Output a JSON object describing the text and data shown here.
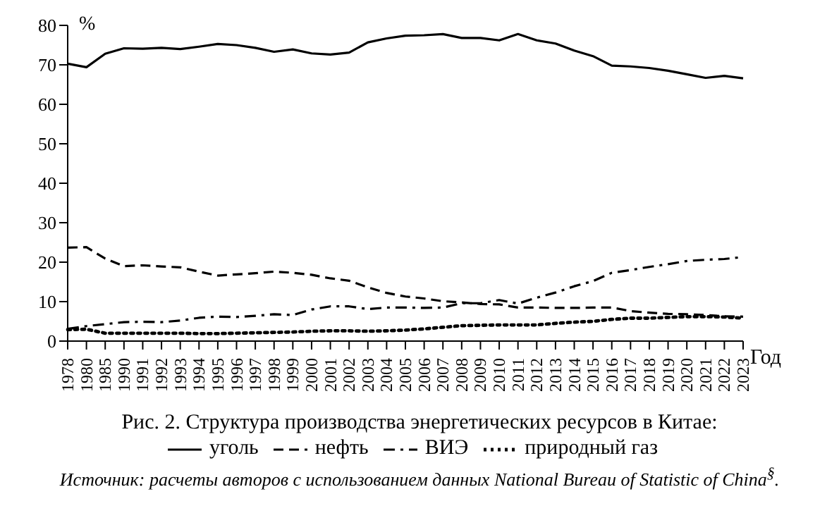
{
  "chart_data": {
    "type": "line",
    "title": "Рис. 2. Структура производства энергетических ресурсов в Китае:",
    "xlabel": "Год",
    "ylabel": "%",
    "annotations": [
      "Источник: расчеты авторов с использованием данных National Bureau of Statistic of China$^{§}$."
    ],
    "categories": [
      "1978",
      "1980",
      "1985",
      "1990",
      "1991",
      "1992",
      "1993",
      "1994",
      "1995",
      "1996",
      "1997",
      "1998",
      "1999",
      "2000",
      "2001",
      "2002",
      "2003",
      "2004",
      "2005",
      "2006",
      "2007",
      "2008",
      "2009",
      "2010",
      "2011",
      "2012",
      "2013",
      "2014",
      "2015",
      "2016",
      "2017",
      "2018",
      "2019",
      "2020",
      "2021",
      "2022",
      "2023"
    ],
    "series": [
      {
        "name": "уголь",
        "color": "#000000",
        "line_style": "solid",
        "values": [
          70.3,
          69.4,
          72.8,
          74.2,
          74.1,
          74.3,
          74.0,
          74.6,
          75.3,
          75.0,
          74.3,
          73.3,
          73.9,
          72.9,
          72.6,
          73.1,
          75.7,
          76.7,
          77.4,
          77.5,
          77.8,
          76.8,
          76.8,
          76.2,
          77.8,
          76.2,
          75.4,
          73.6,
          72.2,
          69.8,
          69.6,
          69.2,
          68.5,
          67.6,
          66.7,
          67.2,
          66.6
        ]
      },
      {
        "name": "нефть",
        "color": "#000000",
        "line_style": "dashed",
        "values": [
          23.7,
          23.8,
          20.9,
          19.0,
          19.2,
          18.9,
          18.7,
          17.6,
          16.6,
          16.9,
          17.2,
          17.6,
          17.3,
          16.8,
          15.9,
          15.3,
          13.6,
          12.2,
          11.3,
          10.8,
          10.1,
          9.8,
          9.4,
          9.3,
          8.5,
          8.5,
          8.4,
          8.4,
          8.5,
          8.5,
          7.6,
          7.2,
          6.9,
          6.8,
          6.6,
          6.3,
          6.2
        ]
      },
      {
        "name": "ВИЭ",
        "color": "#000000",
        "line_style": "dashdot",
        "values": [
          3.1,
          3.8,
          4.3,
          4.8,
          4.9,
          4.8,
          5.2,
          5.9,
          6.2,
          6.1,
          6.4,
          6.8,
          6.6,
          8.0,
          8.8,
          8.8,
          8.1,
          8.5,
          8.5,
          8.4,
          8.5,
          9.6,
          9.6,
          10.4,
          9.5,
          11.0,
          12.3,
          13.9,
          15.2,
          17.3,
          18.0,
          18.8,
          19.5,
          20.3,
          20.6,
          20.8,
          21.3
        ]
      },
      {
        "name": "природный газ",
        "color": "#000000",
        "line_style": "dotted",
        "values": [
          2.9,
          3.0,
          2.0,
          2.0,
          2.0,
          2.0,
          2.0,
          1.9,
          1.9,
          2.0,
          2.1,
          2.2,
          2.3,
          2.5,
          2.6,
          2.6,
          2.5,
          2.6,
          2.8,
          3.1,
          3.5,
          3.9,
          4.0,
          4.1,
          4.1,
          4.1,
          4.5,
          4.8,
          5.0,
          5.5,
          5.8,
          5.8,
          6.0,
          6.2,
          6.2,
          6.1,
          5.8
        ]
      }
    ],
    "ylim": [
      0,
      80
    ],
    "yticks": [
      0,
      10,
      20,
      30,
      40,
      50,
      60,
      70,
      80
    ],
    "grid": false,
    "legend": "bottom",
    "marker": "none"
  }
}
